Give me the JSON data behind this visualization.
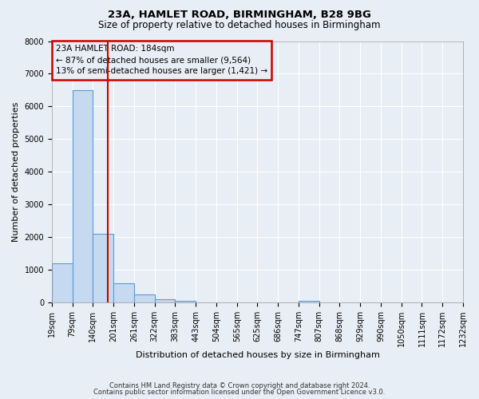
{
  "title1": "23A, HAMLET ROAD, BIRMINGHAM, B28 9BG",
  "title2": "Size of property relative to detached houses in Birmingham",
  "xlabel": "Distribution of detached houses by size in Birmingham",
  "ylabel": "Number of detached properties",
  "footnote1": "Contains HM Land Registry data © Crown copyright and database right 2024.",
  "footnote2": "Contains public sector information licensed under the Open Government Licence v3.0.",
  "bin_labels": [
    "19sqm",
    "79sqm",
    "140sqm",
    "201sqm",
    "261sqm",
    "322sqm",
    "383sqm",
    "443sqm",
    "504sqm",
    "565sqm",
    "625sqm",
    "686sqm",
    "747sqm",
    "807sqm",
    "868sqm",
    "929sqm",
    "990sqm",
    "1050sqm",
    "1111sqm",
    "1172sqm",
    "1232sqm"
  ],
  "bar_values": [
    1200,
    6500,
    2100,
    600,
    250,
    100,
    50,
    10,
    0,
    0,
    0,
    0,
    50,
    0,
    0,
    0,
    0,
    0,
    0,
    0
  ],
  "bar_color": "#c5d9f0",
  "bar_edge_color": "#5b9bd5",
  "vline_color": "#cc0000",
  "annotation_text": "23A HAMLET ROAD: 184sqm\n← 87% of detached houses are smaller (9,564)\n13% of semi-detached houses are larger (1,421) →",
  "annotation_box_color": "#cc0000",
  "ylim": [
    0,
    8000
  ],
  "yticks": [
    0,
    1000,
    2000,
    3000,
    4000,
    5000,
    6000,
    7000,
    8000
  ],
  "background_color": "#e8eef5",
  "grid_color": "#ffffff",
  "title_fontsize": 9.5,
  "subtitle_fontsize": 8.5,
  "axis_label_fontsize": 8,
  "tick_fontsize": 7,
  "annotation_fontsize": 7.5
}
